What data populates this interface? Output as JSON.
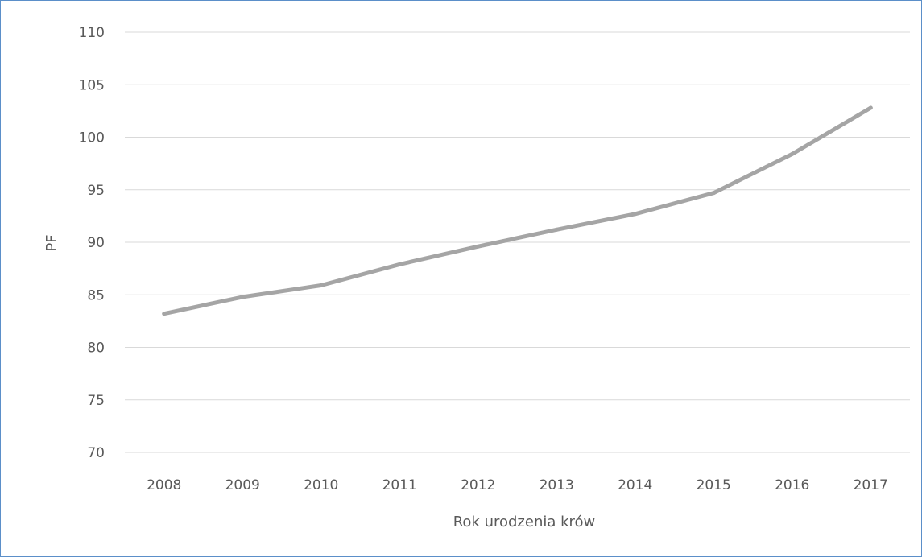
{
  "chart_data": {
    "type": "line",
    "title": "",
    "xlabel": "Rok urodzenia krów",
    "ylabel": "PF",
    "categories": [
      "2008",
      "2009",
      "2010",
      "2011",
      "2012",
      "2013",
      "2014",
      "2015",
      "2016",
      "2017"
    ],
    "series": [
      {
        "values": [
          83.2,
          84.8,
          85.9,
          87.9,
          89.6,
          91.2,
          92.7,
          94.7,
          98.4,
          102.8
        ]
      }
    ],
    "ylim": [
      70,
      110
    ],
    "yticks": [
      "70",
      "75",
      "80",
      "85",
      "90",
      "95",
      "100",
      "105",
      "110"
    ],
    "grid": true,
    "legend": "none",
    "colors": {
      "series": "#a5a5a5",
      "grid": "#d9d9d9",
      "text": "#595959",
      "frame": "#5b8fc9"
    }
  }
}
